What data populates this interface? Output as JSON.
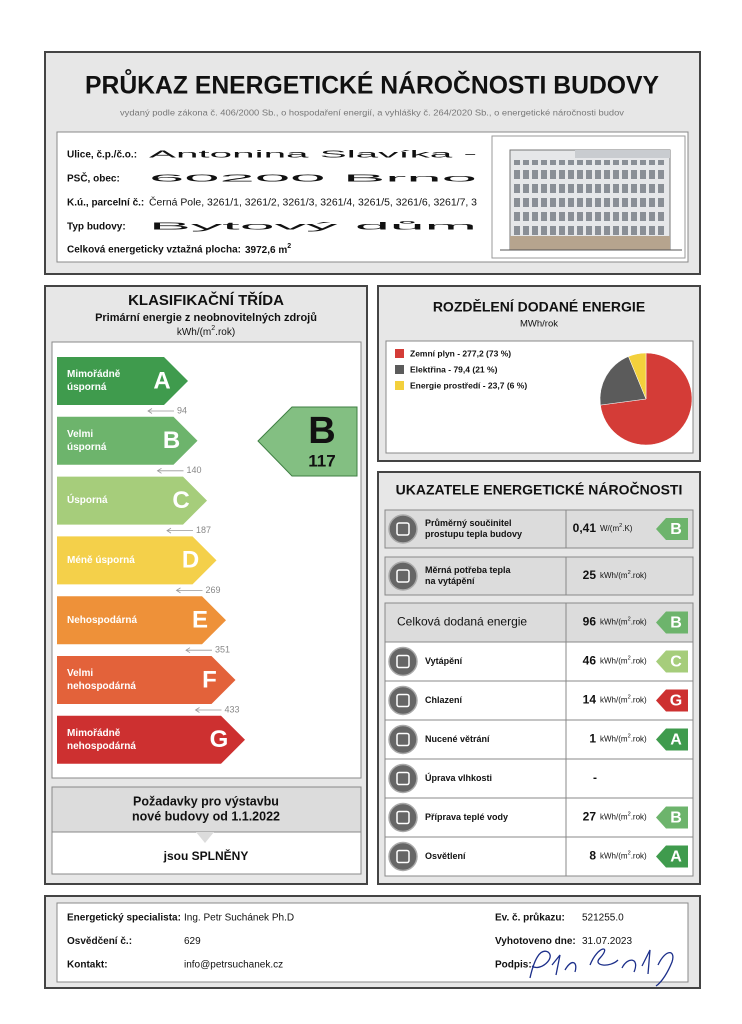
{
  "header": {
    "title": "PRŮKAZ ENERGETICKÉ NÁROČNOSTI BUDOVY",
    "subtitle": "vydaný podle zákona č. 406/2000 Sb., o hospodaření energií, a vyhlášky č. 264/2020 Sb., o energetické náročnosti budov"
  },
  "building": {
    "rows": [
      {
        "label": "Ulice, č.p./č.o.:",
        "value": "Antonina Slavíka -"
      },
      {
        "label": "PSČ, obec:",
        "value": "60200 Brno"
      },
      {
        "label": "K.ú., parcelní č.:",
        "value": "Černá Pole, 3261/1, 3261/2, 3261/3, 3261/4, 3261/5, 3261/6, 3261/7, 3"
      },
      {
        "label": "Typ budovy:",
        "value": "Bytový dům"
      }
    ],
    "area": {
      "label": "Celková energeticky vztažná plocha:",
      "value": "3972,6",
      "unit": [
        "m",
        "2"
      ]
    }
  },
  "classification": {
    "title": "KLASIFIKAČNÍ TŘÍDA",
    "subtitle": "Primární energie z neobnovitelných zdrojů",
    "unit": [
      "kWh/(m",
      "2",
      ".rok)"
    ],
    "classes": [
      {
        "letter": "A",
        "label": [
          "Mimořádně",
          "úsporná"
        ],
        "threshold": 94,
        "color": "#3f9b4d"
      },
      {
        "letter": "B",
        "label": [
          "Velmi",
          "úsporná"
        ],
        "threshold": 140,
        "color": "#6db46c"
      },
      {
        "letter": "C",
        "label": [
          "Úsporná"
        ],
        "threshold": 187,
        "color": "#a6cd7b"
      },
      {
        "letter": "D",
        "label": [
          "Méně úsporná"
        ],
        "threshold": 269,
        "color": "#f4d04a"
      },
      {
        "letter": "E",
        "label": [
          "Nehospodárná"
        ],
        "threshold": 351,
        "color": "#ee9139"
      },
      {
        "letter": "F",
        "label": [
          "Velmi",
          "nehospodárná"
        ],
        "threshold": 433,
        "color": "#e3623a"
      },
      {
        "letter": "G",
        "label": [
          "Mimořádně",
          "nehospodárná"
        ],
        "color": "#cd3030"
      }
    ],
    "rating": {
      "class": "B",
      "value": 117
    },
    "requirement": {
      "lines": [
        "Požadavky pro výstavbu",
        "nové budovy od 1.1.2022"
      ],
      "result": "jsou SPLNĚNY"
    }
  },
  "distribution": {
    "title": "ROZDĚLENÍ DODANÉ ENERGIE",
    "unit": "MWh/rok",
    "items": [
      {
        "label": "Zemní plyn - 277,2 (73 %)",
        "value": 277.2,
        "color": "#d43c37"
      },
      {
        "label": "Elektřina - 79,4 (21 %)",
        "value": 79.4,
        "color": "#5b5b5b"
      },
      {
        "label": "Energie prostředí - 23,7 (6 %)",
        "value": 23.7,
        "color": "#f3d03c"
      }
    ]
  },
  "indicators": {
    "title": "UKAZATELE ENERGETICKÉ NÁROČNOSTI",
    "rows": [
      {
        "label": [
          "Průměrný součinitel",
          "prostupu tepla budovy"
        ],
        "value": "0,41",
        "unit": [
          "W/(m",
          "2",
          ".K)"
        ],
        "class": "B"
      },
      {
        "label": [
          "Měrná potřeba tepla",
          "na vytápění"
        ],
        "value": 25,
        "unit": [
          "kWh/(m",
          "2",
          ".rok)"
        ]
      },
      {
        "label": [
          "Celková dodaná energie"
        ],
        "value": 96,
        "unit": [
          "kWh/(m",
          "2",
          ".rok)"
        ],
        "class": "B"
      },
      {
        "label": [
          "Vytápění"
        ],
        "value": 46,
        "unit": [
          "kWh/(m",
          "2",
          ".rok)"
        ],
        "class": "C"
      },
      {
        "label": [
          "Chlazení"
        ],
        "value": 14,
        "unit": [
          "kWh/(m",
          "2",
          ".rok)"
        ],
        "class": "G"
      },
      {
        "label": [
          "Nucené větrání"
        ],
        "value": 1,
        "unit": [
          "kWh/(m",
          "2",
          ".rok)"
        ],
        "class": "A"
      },
      {
        "label": [
          "Úprava vlhkosti"
        ],
        "value": "-"
      },
      {
        "label": [
          "Příprava teplé vody"
        ],
        "value": 27,
        "unit": [
          "kWh/(m",
          "2",
          ".rok)"
        ],
        "class": "B"
      },
      {
        "label": [
          "Osvětlení"
        ],
        "value": 8,
        "unit": [
          "kWh/(m",
          "2",
          ".rok)"
        ],
        "class": "A"
      }
    ]
  },
  "footer": {
    "left": [
      {
        "label": "Energetický specialista:",
        "value": "Ing. Petr Suchánek Ph.D"
      },
      {
        "label": "Osvědčení č.:",
        "value": "629"
      },
      {
        "label": "Kontakt:",
        "value": "info@petrsuchanek.cz"
      }
    ],
    "right": [
      {
        "label": "Ev. č. průkazu:",
        "value": "521255.0"
      },
      {
        "label": "Vyhotoveno dne:",
        "value": "31.07.2023"
      },
      {
        "label": "Podpis:"
      }
    ]
  }
}
